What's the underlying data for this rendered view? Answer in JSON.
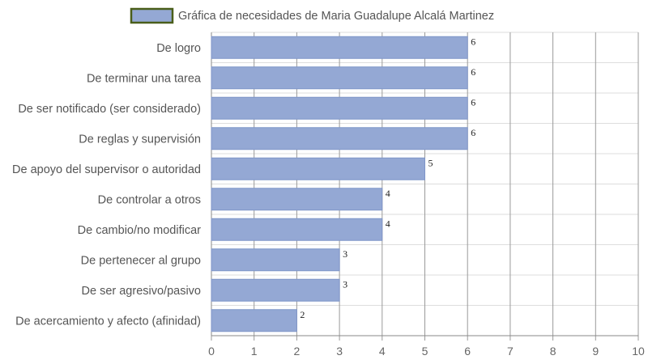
{
  "chart_data": {
    "type": "bar",
    "orientation": "horizontal",
    "title": "",
    "xlabel": "",
    "ylabel": "",
    "categories": [
      "De logro",
      "De terminar una tarea",
      "De ser notificado (ser considerado)",
      "De reglas y supervisión",
      "De apoyo del supervisor o autoridad",
      "De controlar a otros",
      "De cambio/no modificar",
      "De pertenecer al grupo",
      "De ser agresivo/pasivo",
      "De acercamiento y afecto (afinidad)"
    ],
    "series": [
      {
        "name": "Gráfica de necesidades de Maria Guadalupe Alcalá Martinez",
        "values": [
          6,
          6,
          6,
          6,
          5,
          4,
          4,
          3,
          3,
          2
        ]
      }
    ],
    "xlim": [
      0,
      10
    ],
    "xticks": [
      "0",
      "1",
      "2",
      "3",
      "4",
      "5",
      "6",
      "7",
      "8",
      "9",
      "10"
    ],
    "grid": true,
    "legend_position": "top-center",
    "data_labels": true,
    "colors": {
      "bar_fill": "#94a8d4",
      "bar_stroke": "#7f95c8",
      "legend_border": "#4a5e1a",
      "grid_vertical": "#9a9a9a",
      "grid_horizontal": "#dddddd"
    }
  }
}
